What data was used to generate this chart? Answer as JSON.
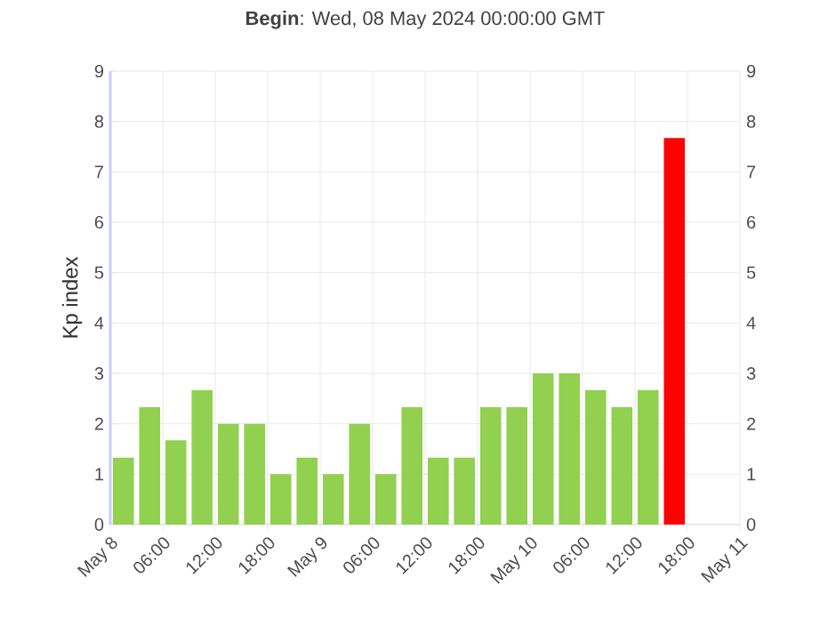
{
  "chart_data": {
    "type": "bar",
    "title": "**Begin**: Wed, 08 May 2024 00:00:00 GMT",
    "ylabel": "Kp index",
    "x": [
      "2024-05-08T01:30",
      "2024-05-08T04:30",
      "2024-05-08T07:30",
      "2024-05-08T10:30",
      "2024-05-08T13:30",
      "2024-05-08T16:30",
      "2024-05-08T19:30",
      "2024-05-08T22:30",
      "2024-05-09T01:30",
      "2024-05-09T04:30",
      "2024-05-09T07:30",
      "2024-05-09T10:30",
      "2024-05-09T13:30",
      "2024-05-09T16:30",
      "2024-05-09T19:30",
      "2024-05-09T22:30",
      "2024-05-10T01:30",
      "2024-05-10T04:30",
      "2024-05-10T07:30",
      "2024-05-10T10:30",
      "2024-05-10T13:30",
      "2024-05-10T16:30"
    ],
    "values": [
      1.33,
      2.33,
      1.67,
      2.67,
      2,
      2,
      1,
      1.33,
      1,
      2,
      1,
      2.33,
      1.33,
      1.33,
      2.33,
      2.33,
      3,
      3,
      2.67,
      2.33,
      2.67,
      7.67
    ],
    "colors": [
      "#92d050",
      "#92d050",
      "#92d050",
      "#92d050",
      "#92d050",
      "#92d050",
      "#92d050",
      "#92d050",
      "#92d050",
      "#92d050",
      "#92d050",
      "#92d050",
      "#92d050",
      "#92d050",
      "#92d050",
      "#92d050",
      "#92d050",
      "#92d050",
      "#92d050",
      "#92d050",
      "#92d050",
      "#ff0000"
    ],
    "xlim": [
      "2024-05-08T00:00",
      "2024-05-11T00:00"
    ],
    "xticks": [
      {
        "value": "2024-05-08T00:00",
        "label": "May 8"
      },
      {
        "value": "2024-05-08T06:00",
        "label": "06:00"
      },
      {
        "value": "2024-05-08T12:00",
        "label": "12:00"
      },
      {
        "value": "2024-05-08T18:00",
        "label": "18:00"
      },
      {
        "value": "2024-05-09T00:00",
        "label": "May 9"
      },
      {
        "value": "2024-05-09T06:00",
        "label": "06:00"
      },
      {
        "value": "2024-05-09T12:00",
        "label": "12:00"
      },
      {
        "value": "2024-05-09T18:00",
        "label": "18:00"
      },
      {
        "value": "2024-05-10T00:00",
        "label": "May 10"
      },
      {
        "value": "2024-05-10T06:00",
        "label": "06:00"
      },
      {
        "value": "2024-05-10T12:00",
        "label": "12:00"
      },
      {
        "value": "2024-05-10T18:00",
        "label": "18:00"
      },
      {
        "value": "2024-05-11T00:00",
        "label": "May 11"
      }
    ],
    "ylim": [
      0,
      9
    ],
    "yticks": [
      0,
      1,
      2,
      3,
      4,
      5,
      6,
      7,
      8,
      9
    ],
    "y2lim": [
      0,
      9
    ],
    "y2ticks": [
      0,
      1,
      2,
      3,
      4,
      5,
      6,
      7,
      8,
      9
    ],
    "grid": true
  }
}
